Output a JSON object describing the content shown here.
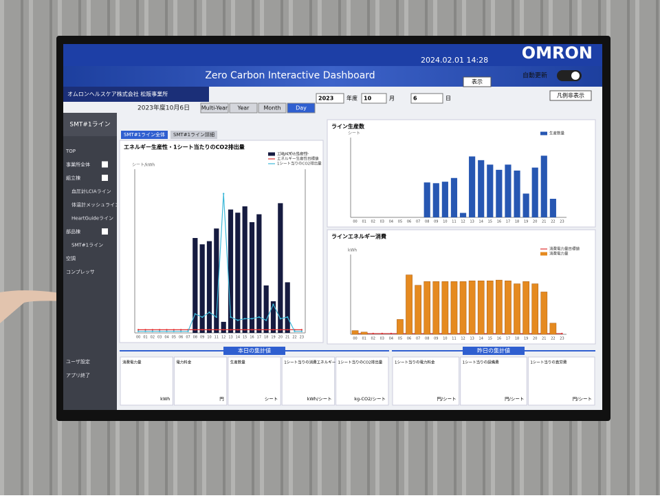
{
  "header": {
    "logo": "OMRON",
    "title": "Zero Carbon Interactive Dashboard",
    "datetime": "2024.02.01 14:28",
    "company": "オムロンヘルスケア株式会社 松阪事業所",
    "auto_update": "自動更新",
    "legend_toggle": "凡例非表示",
    "fiscal_date": "2023年度10月6日"
  },
  "controls": {
    "tabs": [
      "Multi-Year",
      "Year",
      "Month",
      "Day"
    ],
    "active_tab": 3,
    "year": "2023",
    "year_unit": "年度",
    "month": "10",
    "month_unit": "月",
    "day": "6",
    "day_unit": "日",
    "show": "表示"
  },
  "sidebar": {
    "title": "SMT#1ライン",
    "items": [
      "TOP",
      "事業所全体",
      "組立棟",
      "血圧計LCIAライン",
      "体温計メッシュライン",
      "HeartGuideライン",
      "部品棟",
      "SMT#1ライン",
      "空調",
      "コンプレッサ"
    ],
    "footer": [
      "ユーザ設定",
      "アプリ終了"
    ]
  },
  "subtabs": [
    "SMT#1ライン全体",
    "SMT#1ライン詳細"
  ],
  "chart_data": [
    {
      "type": "bar",
      "title": "エネルギー生産性・1シート当たりのCO2排出量",
      "y_label": "シート/kWh",
      "y2_label": "kg-CO2/シート",
      "categories": [
        "00",
        "01",
        "02",
        "03",
        "04",
        "05",
        "06",
        "07",
        "08",
        "09",
        "10",
        "11",
        "12",
        "13",
        "14",
        "15",
        "16",
        "17",
        "18",
        "19",
        "20",
        "21",
        "22",
        "23"
      ],
      "ylim": [
        0,
        100
      ],
      "y2lim": [
        0,
        100
      ],
      "series": [
        {
          "name": "エネルギー生産性",
          "color": "#161b40",
          "values": [
            0,
            0,
            0,
            0,
            0,
            0,
            0,
            0,
            60,
            56,
            58,
            66,
            7,
            78,
            76,
            80,
            70,
            75,
            30,
            20,
            82,
            32,
            0,
            0
          ]
        },
        {
          "name": "エネルギー生産性目標値",
          "color": "#e03030",
          "type": "line",
          "values": [
            2,
            2,
            2,
            2,
            2,
            2,
            2,
            2,
            2,
            2,
            2,
            2,
            2,
            2,
            2,
            2,
            2,
            2,
            2,
            2,
            2,
            2,
            2,
            2
          ]
        },
        {
          "name": "1シート当りのCO2排出量",
          "color": "#3cb8d8",
          "type": "line",
          "axis": "y2",
          "values": [
            1,
            1,
            1,
            1,
            1,
            1,
            1,
            1,
            12,
            10,
            13,
            10,
            88,
            10,
            8,
            9,
            9,
            10,
            8,
            18,
            9,
            10,
            1,
            1
          ]
        }
      ]
    },
    {
      "type": "bar",
      "title": "ライン生産数",
      "y_label": "シート",
      "categories": [
        "00",
        "01",
        "02",
        "03",
        "04",
        "05",
        "06",
        "07",
        "08",
        "09",
        "10",
        "11",
        "12",
        "13",
        "14",
        "15",
        "16",
        "17",
        "18",
        "19",
        "20",
        "21",
        "22",
        "23"
      ],
      "ylim": [
        0,
        100
      ],
      "series": [
        {
          "name": "生産数量",
          "color": "#2757b2",
          "values": [
            0,
            0,
            0,
            0,
            0,
            0,
            0,
            0,
            47,
            46,
            48,
            53,
            6,
            82,
            77,
            71,
            64,
            71,
            63,
            32,
            67,
            83,
            25,
            0
          ]
        }
      ]
    },
    {
      "type": "bar",
      "title": "ラインエネルギー消費",
      "y_label": "kWh",
      "categories": [
        "00",
        "01",
        "02",
        "03",
        "04",
        "05",
        "06",
        "07",
        "08",
        "09",
        "10",
        "11",
        "12",
        "13",
        "14",
        "15",
        "16",
        "17",
        "18",
        "19",
        "20",
        "21",
        "22",
        "23"
      ],
      "ylim": [
        0,
        100
      ],
      "series": [
        {
          "name": "消費電力量目標値",
          "color": "#e03030",
          "type": "line",
          "values": [
            1,
            1,
            1,
            1,
            1,
            1,
            1,
            1,
            1,
            1,
            1,
            1,
            1,
            1,
            1,
            1,
            1,
            1,
            1,
            1,
            1,
            1,
            1,
            1
          ]
        },
        {
          "name": "消費電力量",
          "color": "#e58a20",
          "values": [
            5,
            3,
            0,
            0,
            0,
            20,
            80,
            66,
            71,
            71,
            71,
            71,
            71,
            72,
            72,
            72,
            73,
            72,
            68,
            71,
            68,
            57,
            15,
            0
          ]
        }
      ]
    }
  ],
  "summary": {
    "today": {
      "title": "本日の集計値",
      "cells": [
        {
          "label": "消費電力量",
          "unit": "kWh"
        },
        {
          "label": "電力料金",
          "unit": "円"
        },
        {
          "label": "生産数量",
          "unit": "シート"
        },
        {
          "label": "1シート当りの消費エネルギー量",
          "unit": "kWh/シート"
        },
        {
          "label": "1シート当りのCO2排出量",
          "unit": "kg-CO2/シート"
        }
      ]
    },
    "yesterday": {
      "title": "昨日の集計値",
      "cells": [
        {
          "label": "1シート当りの電力料金",
          "unit": "円/シート"
        },
        {
          "label": "1シート当りの設備費",
          "unit": "円/シート"
        },
        {
          "label": "1シート当りの直労費",
          "unit": "円/シート"
        }
      ]
    }
  }
}
